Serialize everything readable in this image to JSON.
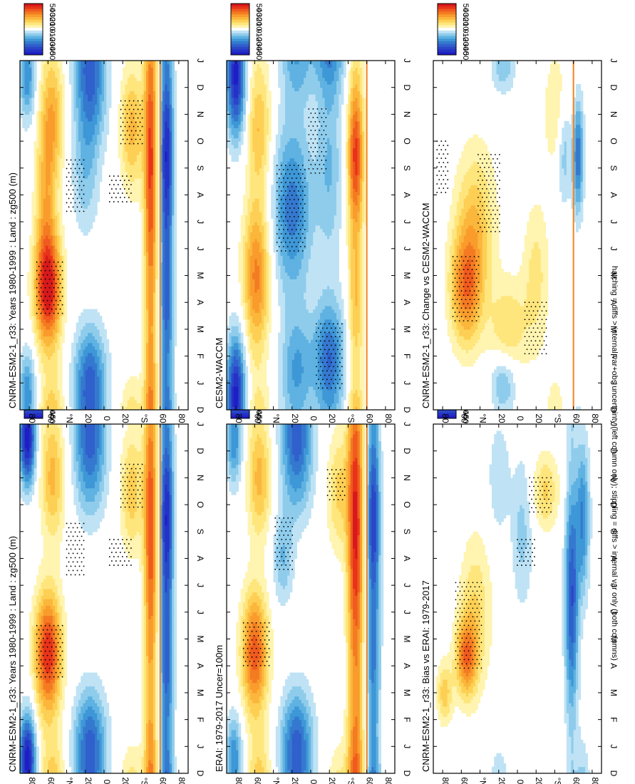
{
  "figure": {
    "footnote": "hatching = diffs > internal var+obs uncertainty (left column only); stippling = diffs > internal var only (both columns)"
  },
  "chart_data": [
    {
      "type": "heatmap",
      "title": "CNRM-ESM2-1_r33: Years 1980-1999 : Land : zg500 (m)",
      "x_ticks": [
        "D",
        "J",
        "F",
        "M",
        "A",
        "M",
        "J",
        "J",
        "A",
        "S",
        "O",
        "N",
        "D",
        "J"
      ],
      "y_ticks": [
        "80",
        "60",
        "°N",
        "20",
        "0",
        "20",
        "°S",
        "60",
        "80"
      ],
      "lat_range": [
        -90,
        90
      ],
      "colorbar": {
        "labels": [
          "50",
          "40",
          "30",
          "20",
          "10",
          "0",
          "-10",
          "-20",
          "-30",
          "-40",
          "-50"
        ],
        "range": [
          -55,
          55
        ]
      },
      "features": [
        {
          "lat": 60,
          "month": 4.5,
          "value": 45,
          "sx": 1.6,
          "sy": 10
        },
        {
          "lat": 55,
          "month": 11,
          "value": 22,
          "sx": 1.6,
          "sy": 9
        },
        {
          "lat": 15,
          "month": 1.5,
          "value": -22,
          "sx": 1.3,
          "sy": 12
        },
        {
          "lat": 15,
          "month": 11.5,
          "value": -22,
          "sx": 1.5,
          "sy": 12
        },
        {
          "lat": 82,
          "month": 0.5,
          "value": -25,
          "sx": 1.2,
          "sy": 6
        },
        {
          "lat": 82,
          "month": 12.5,
          "value": -25,
          "sx": 1.2,
          "sy": 6
        },
        {
          "lat": -30,
          "month": 10.5,
          "value": 18,
          "sx": 1.6,
          "sy": 9
        },
        {
          "lat": -50,
          "month": 9,
          "value": 38,
          "sx": 4,
          "sy": 5
        },
        {
          "lat": -67,
          "month": 9.5,
          "value": -45,
          "sx": 2.5,
          "sy": 5
        },
        {
          "lat": -67,
          "month": 4,
          "value": -28,
          "sx": 2,
          "sy": 5
        }
      ],
      "stipple_regions": [
        {
          "lat": 58,
          "month": 4.5,
          "dlat": 14,
          "dmonth": 1.0
        },
        {
          "lat": 30,
          "month": 8.3,
          "dlat": 10,
          "dmonth": 1.0
        },
        {
          "lat": -30,
          "month": 10.7,
          "dlat": 12,
          "dmonth": 0.8
        },
        {
          "lat": -18,
          "month": 8.2,
          "dlat": 12,
          "dmonth": 0.5
        }
      ],
      "orange_line_lat": -60
    },
    {
      "type": "heatmap",
      "title": "CNRM-ESM2-1_r33: Years 1980-1999 : Land : zg500 (m)",
      "x_ticks": [
        "D",
        "J",
        "F",
        "M",
        "A",
        "M",
        "J",
        "J",
        "A",
        "S",
        "O",
        "N",
        "D",
        "J"
      ],
      "y_ticks": [
        "80",
        "60",
        "°N",
        "20",
        "0",
        "20",
        "°S",
        "60",
        "80"
      ],
      "lat_range": [
        -90,
        90
      ],
      "colorbar": {
        "labels": [
          "50",
          "40",
          "30",
          "20",
          "10",
          "0",
          "-10",
          "-20",
          "-30",
          "-40",
          "-50"
        ],
        "range": [
          -55,
          55
        ]
      },
      "features": [
        {
          "lat": 60,
          "month": 4.5,
          "value": 48,
          "sx": 1.5,
          "sy": 10
        },
        {
          "lat": 55,
          "month": 11,
          "value": 22,
          "sx": 1.6,
          "sy": 9
        },
        {
          "lat": 62,
          "month": 8,
          "value": 20,
          "sx": 2,
          "sy": 8
        },
        {
          "lat": 15,
          "month": 1.5,
          "value": -22,
          "sx": 1.3,
          "sy": 12
        },
        {
          "lat": 15,
          "month": 11.5,
          "value": -22,
          "sx": 1.5,
          "sy": 12
        },
        {
          "lat": 20,
          "month": 8.5,
          "value": -12,
          "sx": 1.5,
          "sy": 10
        },
        {
          "lat": 82,
          "month": 0.5,
          "value": -25,
          "sx": 1.2,
          "sy": 6
        },
        {
          "lat": -30,
          "month": 10.5,
          "value": 22,
          "sx": 1.6,
          "sy": 9
        },
        {
          "lat": -50,
          "month": 9,
          "value": 40,
          "sx": 4,
          "sy": 5
        },
        {
          "lat": -67,
          "month": 9.5,
          "value": -45,
          "sx": 2.5,
          "sy": 5
        },
        {
          "lat": -67,
          "month": 4,
          "value": -28,
          "sx": 2,
          "sy": 5
        }
      ],
      "stipple_regions": [
        {
          "lat": 58,
          "month": 4.5,
          "dlat": 14,
          "dmonth": 1.0
        },
        {
          "lat": 30,
          "month": 8.3,
          "dlat": 10,
          "dmonth": 1.0
        },
        {
          "lat": -30,
          "month": 10.7,
          "dlat": 12,
          "dmonth": 0.8
        },
        {
          "lat": -18,
          "month": 8.2,
          "dlat": 12,
          "dmonth": 0.5
        }
      ],
      "orange_line_lat": -60
    },
    {
      "type": "heatmap",
      "title": "ERAI: 1979-2017 Uncer=100m",
      "x_ticks": [
        "D",
        "J",
        "F",
        "M",
        "A",
        "M",
        "J",
        "J",
        "A",
        "S",
        "O",
        "N",
        "D",
        "J"
      ],
      "y_ticks": [
        "80",
        "60",
        "°N",
        "20",
        "0",
        "20",
        "°S",
        "60",
        "80"
      ],
      "lat_range": [
        -90,
        90
      ],
      "colorbar": {
        "labels": [
          "50",
          "40",
          "30",
          "20",
          "10",
          "0",
          "-10",
          "-20",
          "-30",
          "-40",
          "-50"
        ],
        "range": [
          -55,
          55
        ]
      },
      "features": [
        {
          "lat": 60,
          "month": 4.5,
          "value": 38,
          "sx": 1.6,
          "sy": 10
        },
        {
          "lat": 55,
          "month": 11,
          "value": 22,
          "sx": 1.6,
          "sy": 9
        },
        {
          "lat": 15,
          "month": 1.5,
          "value": -22,
          "sx": 1.3,
          "sy": 12
        },
        {
          "lat": 15,
          "month": 11.5,
          "value": -22,
          "sx": 1.5,
          "sy": 12
        },
        {
          "lat": 30,
          "month": 8,
          "value": -15,
          "sx": 1.2,
          "sy": 8
        },
        {
          "lat": 82,
          "month": 0.5,
          "value": -25,
          "sx": 1.2,
          "sy": 6
        },
        {
          "lat": -30,
          "month": 10.5,
          "value": 16,
          "sx": 1.6,
          "sy": 9
        },
        {
          "lat": -48,
          "month": 9,
          "value": 45,
          "sx": 4,
          "sy": 6
        },
        {
          "lat": -67,
          "month": 9.5,
          "value": -40,
          "sx": 2.5,
          "sy": 5
        },
        {
          "lat": -67,
          "month": 4,
          "value": -22,
          "sx": 2,
          "sy": 5
        }
      ],
      "stipple_regions": [
        {
          "lat": 58,
          "month": 4.8,
          "dlat": 14,
          "dmonth": 0.8
        },
        {
          "lat": 28,
          "month": 8.5,
          "dlat": 10,
          "dmonth": 1.0
        },
        {
          "lat": -28,
          "month": 10.7,
          "dlat": 10,
          "dmonth": 0.6
        }
      ],
      "orange_line_lat": -60
    },
    {
      "type": "heatmap",
      "title": "CESM2-WACCM",
      "x_ticks": [
        "D",
        "J",
        "F",
        "M",
        "A",
        "M",
        "J",
        "J",
        "A",
        "S",
        "O",
        "N",
        "D",
        "J"
      ],
      "y_ticks": [
        "80",
        "60",
        "°N",
        "20",
        "0",
        "20",
        "°S",
        "60",
        "80"
      ],
      "lat_range": [
        -90,
        90
      ],
      "colorbar": {
        "labels": [
          "50",
          "40",
          "30",
          "20",
          "10",
          "0",
          "-10",
          "-20",
          "-30",
          "-40",
          "-50"
        ],
        "range": [
          -55,
          55
        ]
      },
      "features": [
        {
          "lat": 58,
          "month": 5,
          "value": 32,
          "sx": 2,
          "sy": 10
        },
        {
          "lat": 55,
          "month": 10.5,
          "value": 20,
          "sx": 1.6,
          "sy": 9
        },
        {
          "lat": 20,
          "month": 7.5,
          "value": -28,
          "sx": 2.2,
          "sy": 15
        },
        {
          "lat": 15,
          "month": 1.5,
          "value": -20,
          "sx": 1.5,
          "sy": 12
        },
        {
          "lat": 80,
          "month": 1,
          "value": -25,
          "sx": 1.5,
          "sy": 7
        },
        {
          "lat": 80,
          "month": 12,
          "value": -25,
          "sx": 1.5,
          "sy": 7
        },
        {
          "lat": -20,
          "month": 2,
          "value": -28,
          "sx": 1.5,
          "sy": 12
        },
        {
          "lat": -20,
          "month": 9,
          "value": -15,
          "sx": 2.5,
          "sy": 10
        },
        {
          "lat": -48,
          "month": 9.5,
          "value": 42,
          "sx": 2,
          "sy": 6
        },
        {
          "lat": -48,
          "month": 4,
          "value": 20,
          "sx": 2,
          "sy": 6
        }
      ],
      "stipple_regions": [
        {
          "lat": 20,
          "month": 7.5,
          "dlat": 16,
          "dmonth": 1.6
        },
        {
          "lat": -20,
          "month": 2,
          "dlat": 14,
          "dmonth": 1.2
        },
        {
          "lat": -8,
          "month": 10,
          "dlat": 10,
          "dmonth": 1.2
        }
      ],
      "orange_line_lat": -60
    },
    {
      "type": "heatmap",
      "title": "CNRM-ESM2-1_r33: Bias vs ERAI: 1979-2017",
      "x_ticks": [
        "D",
        "J",
        "F",
        "M",
        "A",
        "M",
        "J",
        "J",
        "A",
        "S",
        "O",
        "N",
        "D",
        "J"
      ],
      "y_ticks": [
        "80",
        "60",
        "°N",
        "20",
        "0",
        "20",
        "°S",
        "60",
        "80"
      ],
      "lat_range": [
        -90,
        90
      ],
      "colorbar": {
        "labels": [
          "50",
          "40",
          "30",
          "20",
          "10",
          "0",
          "-10",
          "-20",
          "-30",
          "-40",
          "-50"
        ],
        "range": [
          -55,
          55
        ]
      },
      "features": [
        {
          "lat": 55,
          "month": 4.3,
          "value": 30,
          "sx": 1.0,
          "sy": 8
        },
        {
          "lat": 45,
          "month": 6,
          "value": 15,
          "sx": 2,
          "sy": 12
        },
        {
          "lat": 78,
          "month": 3,
          "value": 18,
          "sx": 0.8,
          "sy": 6
        },
        {
          "lat": -30,
          "month": 10.5,
          "value": 16,
          "sx": 1.0,
          "sy": 10
        },
        {
          "lat": -58,
          "month": 6.5,
          "value": -35,
          "sx": 3,
          "sy": 5
        },
        {
          "lat": -70,
          "month": 9.5,
          "value": -25,
          "sx": 2,
          "sy": 5
        },
        {
          "lat": -5,
          "month": 9,
          "value": -12,
          "sx": 2,
          "sy": 8
        },
        {
          "lat": 20,
          "month": 11,
          "value": -10,
          "sx": 1.5,
          "sy": 8
        }
      ],
      "stipple_regions": [
        {
          "lat": 52,
          "month": 5.5,
          "dlat": 14,
          "dmonth": 1.6
        },
        {
          "lat": -25,
          "month": 10.3,
          "dlat": 12,
          "dmonth": 0.7
        },
        {
          "lat": -10,
          "month": 8.2,
          "dlat": 10,
          "dmonth": 0.5
        }
      ],
      "orange_line_lat": null
    },
    {
      "type": "heatmap",
      "title": "CNRM-ESM2-1_r33: Change vs CESM2-WACCM",
      "x_ticks": [
        "D",
        "J",
        "F",
        "M",
        "A",
        "M",
        "J",
        "J",
        "A",
        "S",
        "O",
        "N",
        "D",
        "J"
      ],
      "y_ticks": [
        "80",
        "60",
        "°N",
        "20",
        "0",
        "20",
        "°S",
        "60",
        "80"
      ],
      "lat_range": [
        -90,
        90
      ],
      "colorbar": {
        "labels": [
          "50",
          "40",
          "30",
          "20",
          "10",
          "0",
          "-10",
          "-20",
          "-30",
          "-40",
          "-50"
        ],
        "range": [
          -55,
          55
        ]
      },
      "features": [
        {
          "lat": 55,
          "month": 4.5,
          "value": 30,
          "sx": 1.5,
          "sy": 12
        },
        {
          "lat": 45,
          "month": 7,
          "value": 18,
          "sx": 2,
          "sy": 15
        },
        {
          "lat": 10,
          "month": 3,
          "value": 15,
          "sx": 1.3,
          "sy": 14
        },
        {
          "lat": -20,
          "month": 5,
          "value": 12,
          "sx": 2,
          "sy": 10
        },
        {
          "lat": -50,
          "month": 10,
          "value": -20,
          "sx": 1.5,
          "sy": 6
        },
        {
          "lat": -65,
          "month": 9.5,
          "value": -30,
          "sx": 1.5,
          "sy": 4
        },
        {
          "lat": 15,
          "month": 1,
          "value": -18,
          "sx": 0.8,
          "sy": 10
        },
        {
          "lat": -45,
          "month": 11,
          "value": 15,
          "sx": 1.5,
          "sy": 10
        }
      ],
      "stipple_regions": [
        {
          "lat": 55,
          "month": 4.5,
          "dlat": 14,
          "dmonth": 1.2
        },
        {
          "lat": 30,
          "month": 8,
          "dlat": 12,
          "dmonth": 1.5
        },
        {
          "lat": -20,
          "month": 3,
          "dlat": 12,
          "dmonth": 1.0
        },
        {
          "lat": 80,
          "month": 9,
          "dlat": 6,
          "dmonth": 1.0
        }
      ],
      "orange_line_lat": -60
    }
  ]
}
